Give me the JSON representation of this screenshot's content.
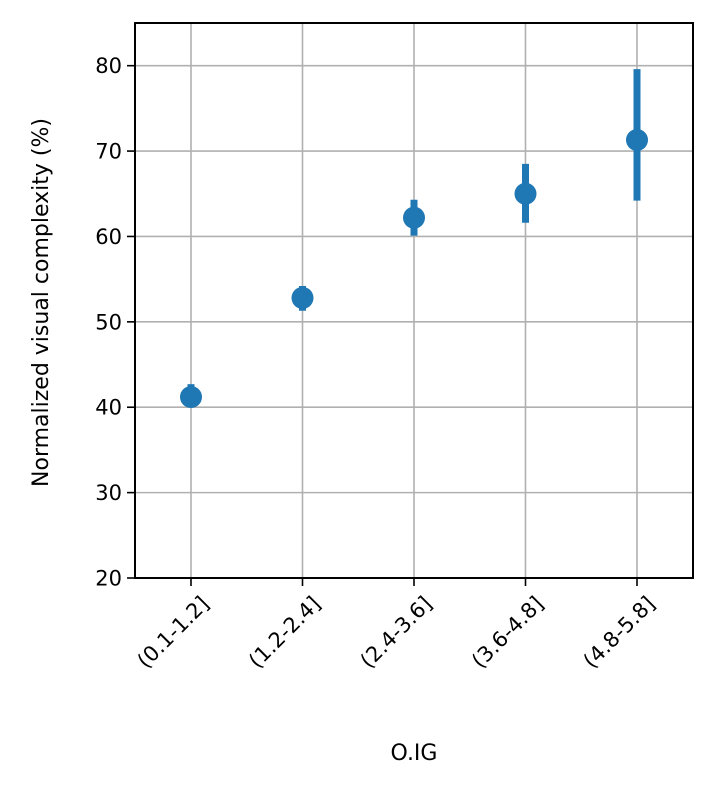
{
  "chart_data": {
    "type": "scatter",
    "title": "",
    "xlabel": "O.IG",
    "ylabel": "Normalized visual complexity (%)",
    "categories": [
      "(0.1-1.2]",
      "(1.2-2.4]",
      "(2.4-3.6]",
      "(3.6-4.8]",
      "(4.8-5.8]"
    ],
    "series": [
      {
        "values": [
          41.2,
          52.8,
          62.2,
          65.0,
          71.3
        ],
        "err_low": [
          40.0,
          51.3,
          60.1,
          61.6,
          64.2
        ],
        "err_high": [
          42.7,
          54.2,
          64.3,
          68.5,
          79.6
        ]
      }
    ],
    "ylim": [
      20,
      85
    ],
    "yticks": [
      20,
      30,
      40,
      50,
      60,
      70,
      80
    ],
    "grid": true,
    "color": "#1f77b4"
  }
}
